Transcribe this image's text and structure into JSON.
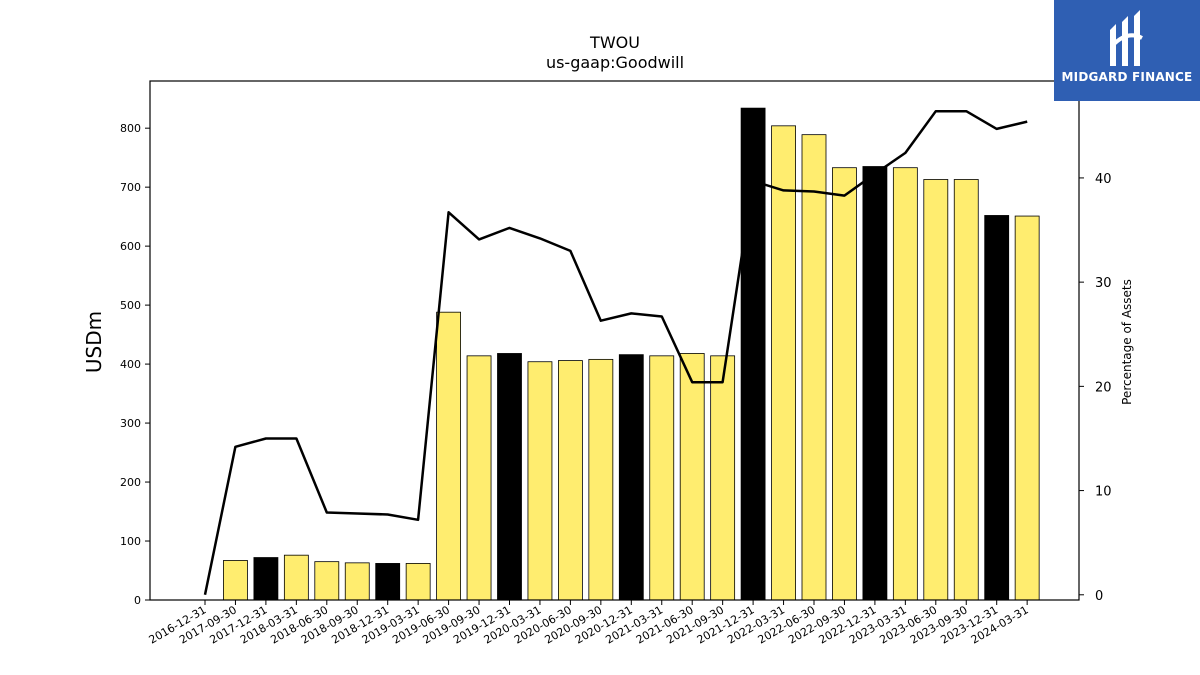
{
  "chart_data": {
    "type": "bar",
    "title": "TWOU",
    "subtitle": "us-gaap:Goodwill",
    "ylabel": "USDm",
    "y2label": "Percentage of Assets",
    "ylim": [
      0,
      880
    ],
    "y2lim": [
      -0.5,
      49.3
    ],
    "yticks": [
      0,
      100,
      200,
      300,
      400,
      500,
      600,
      700,
      800
    ],
    "y2ticks": [
      0,
      10,
      20,
      30,
      40
    ],
    "categories": [
      "2016-12-31",
      "2017-09-30",
      "2017-12-31",
      "2018-03-31",
      "2018-06-30",
      "2018-09-30",
      "2018-12-31",
      "2019-03-31",
      "2019-06-30",
      "2019-09-30",
      "2019-12-31",
      "2020-03-31",
      "2020-06-30",
      "2020-09-30",
      "2020-12-31",
      "2021-03-31",
      "2021-06-30",
      "2021-09-30",
      "2021-12-31",
      "2022-03-31",
      "2022-06-30",
      "2022-09-30",
      "2022-12-31",
      "2023-03-31",
      "2023-06-30",
      "2023-09-30",
      "2023-12-31",
      "2024-03-31"
    ],
    "series": [
      {
        "kind": "bar",
        "values": [
          null,
          67,
          72,
          76,
          65,
          63,
          62,
          62,
          488,
          414,
          418,
          404,
          406,
          408,
          416,
          414,
          418,
          414,
          834,
          804,
          789,
          733,
          735,
          733,
          713,
          713,
          652,
          651
        ],
        "highlight": [
          false,
          false,
          true,
          false,
          false,
          false,
          true,
          false,
          false,
          false,
          true,
          false,
          false,
          false,
          true,
          false,
          false,
          false,
          true,
          false,
          false,
          false,
          true,
          false,
          false,
          false,
          true,
          false
        ]
      },
      {
        "kind": "line",
        "axis": "right",
        "values": [
          0,
          14.2,
          15.0,
          15.0,
          7.9,
          7.8,
          7.7,
          7.2,
          36.7,
          34.1,
          35.2,
          34.2,
          33.0,
          26.3,
          27.0,
          26.7,
          20.4,
          20.4,
          39.7,
          38.8,
          38.7,
          38.3,
          40.4,
          42.4,
          46.4,
          46.4,
          44.7,
          45.4
        ]
      }
    ],
    "colors": {
      "bar": "#ffed6f",
      "bar_highlight": "#000000",
      "line": "#000000",
      "edge": "#000000"
    },
    "grid": false,
    "legend": "none"
  },
  "logo": {
    "text": "MIDGARD FINANCE",
    "background": "#2f5fb3"
  }
}
